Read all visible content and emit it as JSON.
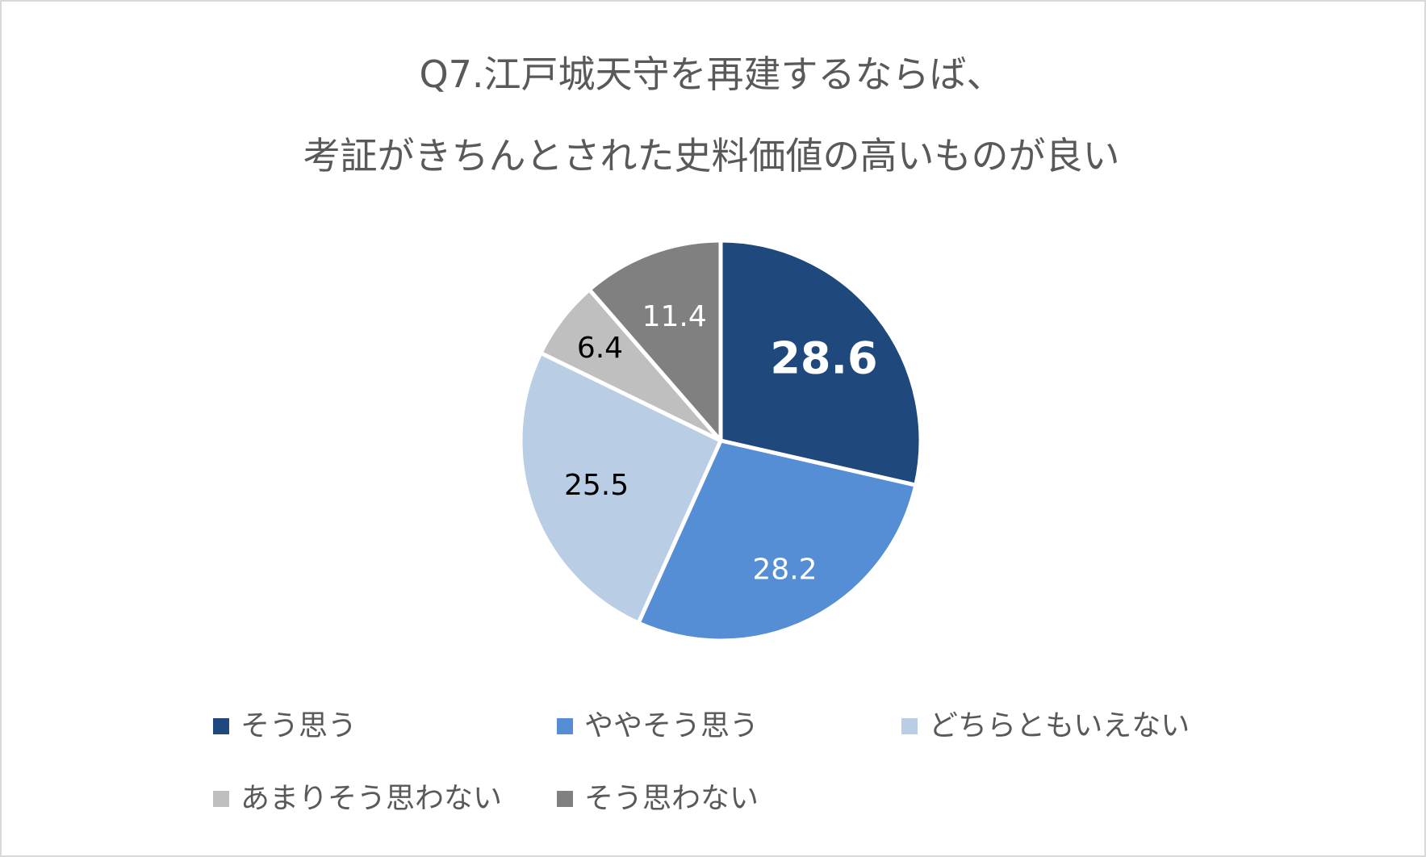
{
  "chart_data": {
    "type": "pie",
    "title_lines": [
      "Q7.江戸城天守を再建するならば、",
      "考証がきちんとされた史料価値の高いものが良い"
    ],
    "categories": [
      "そう思う",
      "ややそう思う",
      "どちらともいえない",
      "あまりそう思わない",
      "そう思わない"
    ],
    "values": [
      28.6,
      28.2,
      25.5,
      6.4,
      11.4
    ],
    "value_labels": [
      "28.6",
      "28.2",
      "25.5",
      "6.4",
      "11.4"
    ],
    "colors": [
      "#1f497d",
      "#558ed5",
      "#b9cde5",
      "#bfbfbf",
      "#808080"
    ],
    "label_colors": [
      "#ffffff",
      "#ffffff",
      "#000000",
      "#000000",
      "#ffffff"
    ],
    "legend_position": "bottom",
    "start_angle_deg": 0,
    "direction": "clockwise"
  }
}
